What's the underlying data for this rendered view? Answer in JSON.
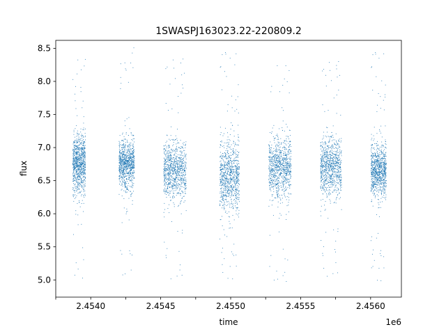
{
  "chart_data": {
    "type": "scatter",
    "title": "1SWASPJ163023.22-220809.2",
    "xlabel": "time",
    "ylabel": "flux",
    "x_offset_label": "1e6",
    "xlim": [
      2453750,
      2456220
    ],
    "ylim": [
      4.74,
      8.62
    ],
    "x_ticks": [
      2453750,
      2454000,
      2454250,
      2454500,
      2454750,
      2455000,
      2455250,
      2455500,
      2455750,
      2456000
    ],
    "x_tick_labels": [
      "",
      "2.4540",
      "",
      "2.4545",
      "",
      "2.4550",
      "",
      "2.4555",
      "",
      "2.4560"
    ],
    "y_ticks": [
      5.0,
      5.5,
      6.0,
      6.5,
      7.0,
      7.5,
      8.0,
      8.5
    ],
    "y_tick_labels": [
      "5.0",
      "5.5",
      "6.0",
      "6.5",
      "7.0",
      "7.5",
      "8.0",
      "8.5"
    ],
    "grid": false,
    "marker_color": "#1f77b4",
    "seasons": [
      {
        "x_start": 2453870,
        "x_end": 2453960,
        "y_center": 6.75,
        "y_spread": 0.45,
        "y_min": 4.95,
        "y_max": 8.48
      },
      {
        "x_start": 2454200,
        "x_end": 2454310,
        "y_center": 6.75,
        "y_spread": 0.35,
        "y_min": 5.02,
        "y_max": 8.52
      },
      {
        "x_start": 2454520,
        "x_end": 2454680,
        "y_center": 6.65,
        "y_spread": 0.45,
        "y_min": 4.98,
        "y_max": 8.42
      },
      {
        "x_start": 2454920,
        "x_end": 2455060,
        "y_center": 6.55,
        "y_spread": 0.55,
        "y_min": 4.95,
        "y_max": 8.45
      },
      {
        "x_start": 2455270,
        "x_end": 2455430,
        "y_center": 6.7,
        "y_spread": 0.45,
        "y_min": 4.94,
        "y_max": 8.48
      },
      {
        "x_start": 2455640,
        "x_end": 2455790,
        "y_center": 6.7,
        "y_spread": 0.45,
        "y_min": 5.02,
        "y_max": 8.38
      },
      {
        "x_start": 2456000,
        "x_end": 2456110,
        "y_center": 6.65,
        "y_spread": 0.4,
        "y_min": 4.92,
        "y_max": 8.45
      }
    ]
  }
}
